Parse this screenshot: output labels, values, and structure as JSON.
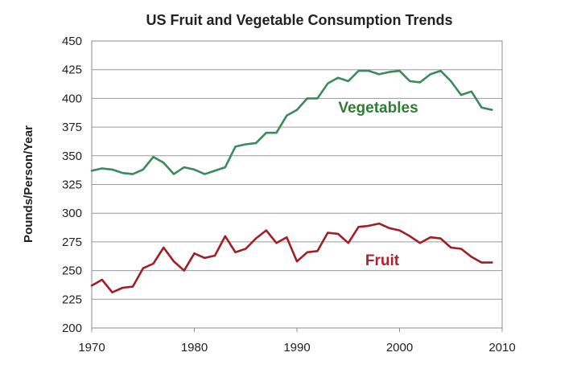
{
  "chart_data": {
    "type": "line",
    "title": "US Fruit and Vegetable Consumption Trends",
    "xlabel": "",
    "ylabel": "Pounds/Person/Year",
    "xlim": [
      1970,
      2010
    ],
    "ylim": [
      200,
      450
    ],
    "x_ticks": [
      1970,
      1980,
      1990,
      2000,
      2010
    ],
    "y_ticks": [
      200,
      225,
      250,
      275,
      300,
      325,
      350,
      375,
      400,
      425,
      450
    ],
    "grid": "horizontal",
    "legend": "none",
    "series": [
      {
        "name": "Vegetables",
        "color": "#3a8a5c",
        "label_color": "#2e7d32",
        "x": [
          1970,
          1971,
          1972,
          1973,
          1974,
          1975,
          1976,
          1977,
          1978,
          1979,
          1980,
          1981,
          1982,
          1983,
          1984,
          1985,
          1986,
          1987,
          1988,
          1989,
          1990,
          1991,
          1992,
          1993,
          1994,
          1995,
          1996,
          1997,
          1998,
          1999,
          2000,
          2001,
          2002,
          2003,
          2004,
          2005,
          2006,
          2007,
          2008,
          2009
        ],
        "values": [
          337,
          339,
          338,
          335,
          334,
          338,
          349,
          344,
          334,
          340,
          338,
          334,
          337,
          340,
          358,
          360,
          361,
          370,
          370,
          385,
          390,
          400,
          400,
          413,
          418,
          415,
          424,
          424,
          421,
          423,
          424,
          415,
          414,
          421,
          424,
          415,
          403,
          406,
          392,
          390
        ]
      },
      {
        "name": "Fruit",
        "color": "#a31d24",
        "label_color": "#b3202a",
        "x": [
          1970,
          1971,
          1972,
          1973,
          1974,
          1975,
          1976,
          1977,
          1978,
          1979,
          1980,
          1981,
          1982,
          1983,
          1984,
          1985,
          1986,
          1987,
          1988,
          1989,
          1990,
          1991,
          1992,
          1993,
          1994,
          1995,
          1996,
          1997,
          1998,
          1999,
          2000,
          2001,
          2002,
          2003,
          2004,
          2005,
          2006,
          2007,
          2008,
          2009
        ],
        "values": [
          237,
          242,
          231,
          235,
          236,
          252,
          256,
          270,
          258,
          250,
          265,
          261,
          263,
          280,
          266,
          269,
          278,
          285,
          274,
          279,
          258,
          266,
          267,
          283,
          282,
          274,
          288,
          289,
          291,
          287,
          285,
          280,
          274,
          279,
          278,
          270,
          269,
          262,
          257,
          257
        ]
      }
    ]
  }
}
